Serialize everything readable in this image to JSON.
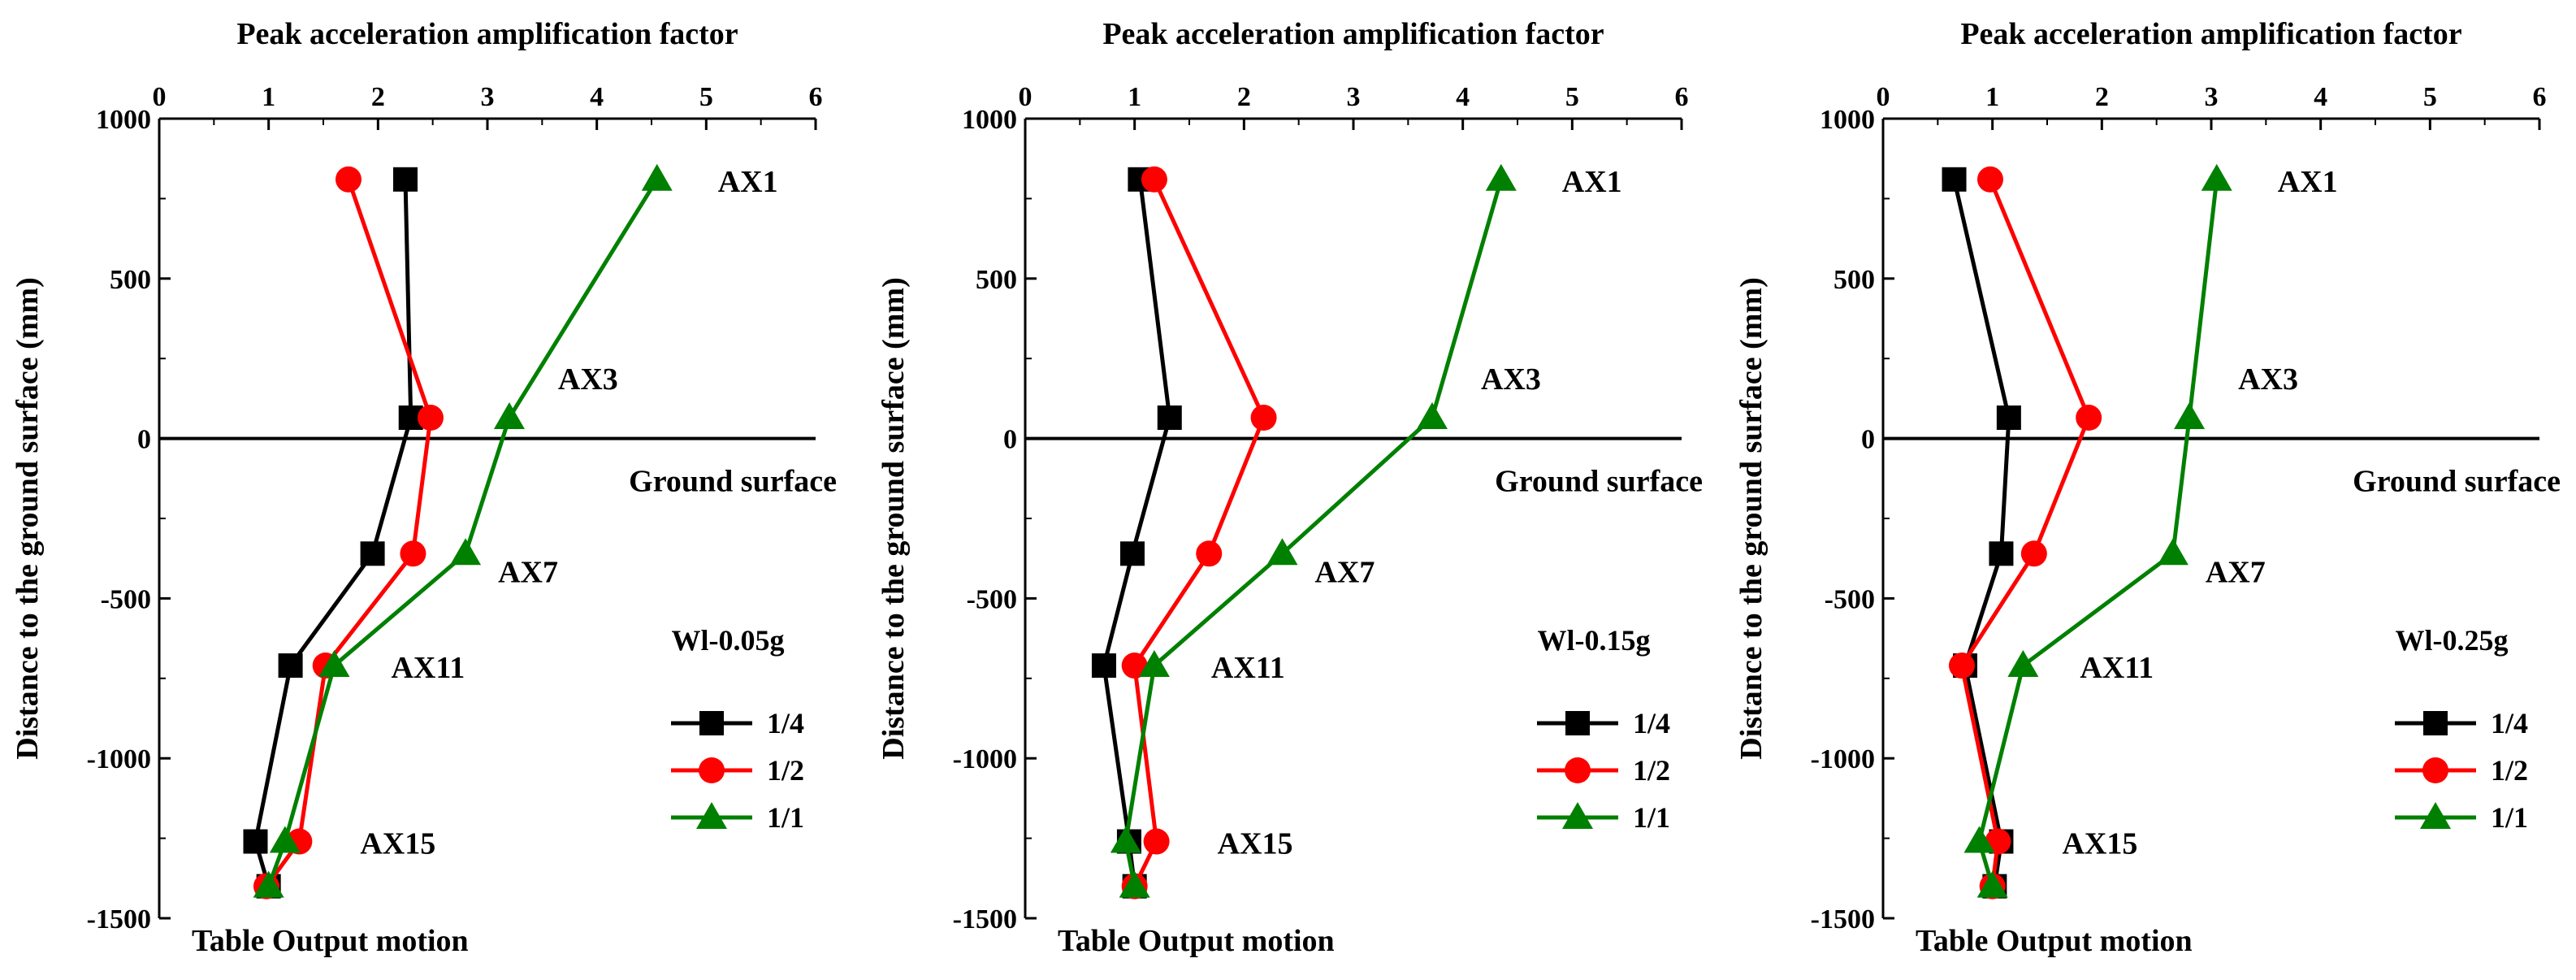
{
  "colors": {
    "s14": "#000000",
    "s12": "#ff0000",
    "s11": "#008000"
  },
  "chart_data": [
    {
      "type": "line",
      "title": "Peak acceleration amplification factor",
      "ylabel": "Distance to the ground surface (mm)",
      "xlim": [
        0,
        6
      ],
      "ylim": [
        -1500,
        1000
      ],
      "xticks": [
        "0",
        "1",
        "2",
        "3",
        "4",
        "5",
        "6"
      ],
      "yticks": [
        "1000",
        "500",
        "0",
        "-500",
        "-1000",
        "-1500"
      ],
      "ground_label": "Ground surface",
      "table_label": "Table Output motion",
      "legend_title": "Wl-0.05g",
      "y": [
        810,
        65,
        -360,
        -710,
        -1260,
        -1400
      ],
      "annotations": [
        "AX1",
        "AX3",
        "AX7",
        "AX11",
        "AX15"
      ],
      "series": [
        {
          "name": "1/4",
          "marker": "square",
          "values": [
            2.25,
            2.3,
            1.95,
            1.2,
            0.88,
            1.0
          ]
        },
        {
          "name": "1/2",
          "marker": "circle",
          "values": [
            1.73,
            2.48,
            2.32,
            1.52,
            1.28,
            0.98
          ]
        },
        {
          "name": "1/1",
          "marker": "triangle",
          "values": [
            4.55,
            3.2,
            2.8,
            1.6,
            1.15,
            1.0
          ]
        }
      ]
    },
    {
      "type": "line",
      "title": "Peak acceleration amplification factor",
      "ylabel": "Distance to the ground surface (mm)",
      "xlim": [
        0,
        6
      ],
      "ylim": [
        -1500,
        1000
      ],
      "xticks": [
        "0",
        "1",
        "2",
        "3",
        "4",
        "5",
        "6"
      ],
      "yticks": [
        "1000",
        "500",
        "0",
        "-500",
        "-1000",
        "-1500"
      ],
      "ground_label": "Ground surface",
      "table_label": "Table Output motion",
      "legend_title": "Wl-0.15g",
      "y": [
        810,
        65,
        -360,
        -710,
        -1260,
        -1400
      ],
      "annotations": [
        "AX1",
        "AX3",
        "AX7",
        "AX11",
        "AX15"
      ],
      "series": [
        {
          "name": "1/4",
          "marker": "square",
          "values": [
            1.05,
            1.32,
            0.98,
            0.72,
            0.95,
            1.0
          ]
        },
        {
          "name": "1/2",
          "marker": "circle",
          "values": [
            1.18,
            2.18,
            1.68,
            1.0,
            1.2,
            1.0
          ]
        },
        {
          "name": "1/1",
          "marker": "triangle",
          "values": [
            4.35,
            3.72,
            2.35,
            1.18,
            0.92,
            1.0
          ]
        }
      ]
    },
    {
      "type": "line",
      "title": "Peak acceleration amplification factor",
      "ylabel": "Distance to the ground surface (mm)",
      "xlim": [
        0,
        6
      ],
      "ylim": [
        -1500,
        1000
      ],
      "xticks": [
        "0",
        "1",
        "2",
        "3",
        "4",
        "5",
        "6"
      ],
      "yticks": [
        "1000",
        "500",
        "0",
        "-500",
        "-1000",
        "-1500"
      ],
      "ground_label": "Ground surface",
      "table_label": "Table Output motion",
      "legend_title": "Wl-0.25g",
      "y": [
        810,
        65,
        -360,
        -710,
        -1260,
        -1400
      ],
      "annotations": [
        "AX1",
        "AX3",
        "AX7",
        "AX11",
        "AX15"
      ],
      "series": [
        {
          "name": "1/4",
          "marker": "square",
          "values": [
            0.65,
            1.15,
            1.08,
            0.75,
            1.08,
            1.02
          ]
        },
        {
          "name": "1/2",
          "marker": "circle",
          "values": [
            0.98,
            1.88,
            1.38,
            0.72,
            1.05,
            1.0
          ]
        },
        {
          "name": "1/1",
          "marker": "triangle",
          "values": [
            3.05,
            2.8,
            2.65,
            1.28,
            0.88,
            1.0
          ]
        }
      ]
    }
  ]
}
